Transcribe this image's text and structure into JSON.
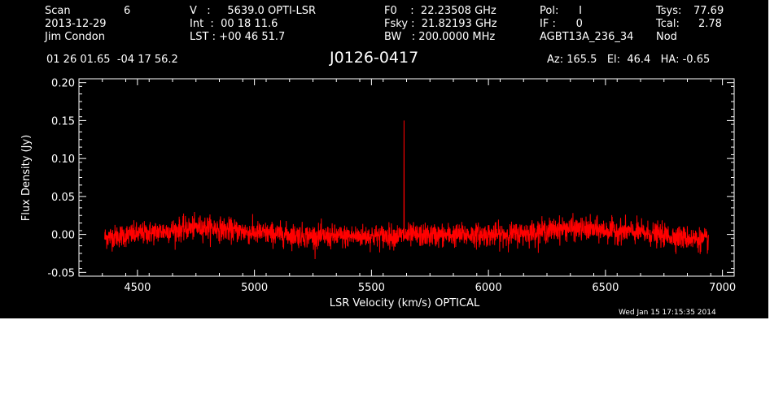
{
  "header": {
    "scan_label": "Scan",
    "scan_value": "6",
    "date": "2013-12-29",
    "observer": "Jim Condon",
    "v_text": "V   :     5639.0 OPTI-LSR",
    "int_text": "Int  :  00 18 11.6",
    "lst_text": "LST : +00 46 51.7",
    "f0_text": "F0    :  22.23508 GHz",
    "fsky_text": "Fsky :  21.82193 GHz",
    "bw_text": "BW   : 200.0000 MHz",
    "pol_text": "Pol:      I",
    "if_text": "IF :      0",
    "project": "AGBT13A_236_34",
    "tsys_label": "Tsys:",
    "tsys_value": "77.69",
    "tcal_label": "Tcal:",
    "tcal_value": "2.78",
    "proc": "Nod",
    "coords": "01 26 01.65  -04 17 56.2",
    "source": "J0126-0417",
    "az_el_ha": "Az: 165.5   El:  46.4   HA: -0.65",
    "timestamp": "Wed Jan 15 17:15:35 2014"
  },
  "chart_data": {
    "type": "line",
    "xlabel": "LSR Velocity (km/s) OPTICAL",
    "ylabel": "Flux Density (Jy)",
    "xlim": [
      4250,
      7050
    ],
    "ylim": [
      -0.055,
      0.205
    ],
    "xticks": [
      4500,
      5000,
      5500,
      6000,
      6500,
      7000
    ],
    "xtick_labels": [
      "4500",
      "5000",
      "5500",
      "6000",
      "6500",
      "7000"
    ],
    "yticks": [
      -0.05,
      0.0,
      0.05,
      0.1,
      0.15,
      0.2
    ],
    "ytick_labels": [
      "-0.05",
      "0.00",
      "0.05",
      "0.10",
      "0.15",
      "0.20"
    ],
    "series_color": "#ff0000",
    "axis_color": "#ffffff",
    "background": "#000000",
    "x_range": [
      4360,
      6940
    ],
    "noise_rms": 0.0075,
    "baseline": [
      {
        "x": 4360,
        "y": -0.004
      },
      {
        "x": 4550,
        "y": 0.002
      },
      {
        "x": 4780,
        "y": 0.01
      },
      {
        "x": 5000,
        "y": 0.002
      },
      {
        "x": 5300,
        "y": -0.003
      },
      {
        "x": 5500,
        "y": -0.002
      },
      {
        "x": 5800,
        "y": -0.001
      },
      {
        "x": 6100,
        "y": 0.0
      },
      {
        "x": 6330,
        "y": 0.008
      },
      {
        "x": 6600,
        "y": 0.004
      },
      {
        "x": 6940,
        "y": -0.008
      }
    ],
    "spike": {
      "x": 5639,
      "y": 0.15
    }
  }
}
